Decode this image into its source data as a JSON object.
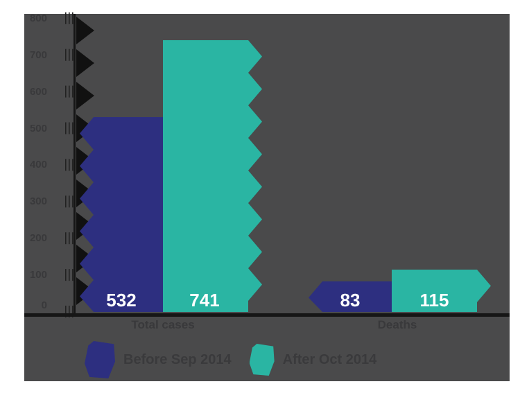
{
  "chart_data": {
    "type": "bar",
    "title": "",
    "xlabel": "",
    "ylabel": "",
    "categories": [
      "Total cases",
      "Deaths"
    ],
    "series": [
      {
        "name": "Before Sep 2014",
        "color": "#2d2f80",
        "values": [
          532,
          83
        ]
      },
      {
        "name": "After Oct 2014",
        "color": "#2ab5a3",
        "values": [
          741,
          115
        ]
      }
    ],
    "y_ticks": [
      0,
      100,
      200,
      300,
      400,
      500,
      600,
      700,
      800
    ],
    "ylim": [
      0,
      800
    ],
    "grid": false,
    "legend_position": "bottom",
    "bar_value_labels": true,
    "style": "jagged-zigzag-bars"
  },
  "colors": {
    "plot_background": "#4a4a4b",
    "page_background": "#ffffff",
    "axis": "#161616",
    "tick_text": "#39393b",
    "value_text": "#ffffff"
  }
}
